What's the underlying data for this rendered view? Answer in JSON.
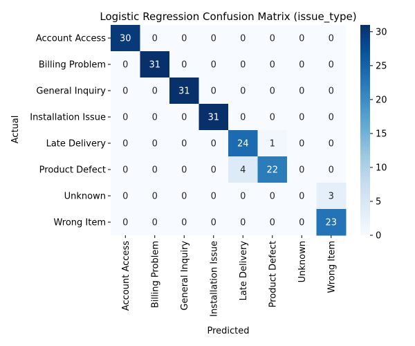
{
  "chart_data": {
    "type": "heatmap",
    "title": "Logistic Regression Confusion Matrix (issue_type)",
    "xlabel": "Predicted",
    "ylabel": "Actual",
    "x_categories": [
      "Account Access",
      "Billing Problem",
      "General Inquiry",
      "Installation Issue",
      "Late Delivery",
      "Product Defect",
      "Unknown",
      "Wrong Item"
    ],
    "y_categories": [
      "Account Access",
      "Billing Problem",
      "General Inquiry",
      "Installation Issue",
      "Late Delivery",
      "Product Defect",
      "Unknown",
      "Wrong Item"
    ],
    "values": [
      [
        30,
        0,
        0,
        0,
        0,
        0,
        0,
        0
      ],
      [
        0,
        31,
        0,
        0,
        0,
        0,
        0,
        0
      ],
      [
        0,
        0,
        31,
        0,
        0,
        0,
        0,
        0
      ],
      [
        0,
        0,
        0,
        31,
        0,
        0,
        0,
        0
      ],
      [
        0,
        0,
        0,
        0,
        24,
        1,
        0,
        0
      ],
      [
        0,
        0,
        0,
        0,
        4,
        22,
        0,
        0
      ],
      [
        0,
        0,
        0,
        0,
        0,
        0,
        0,
        3
      ],
      [
        0,
        0,
        0,
        0,
        0,
        0,
        0,
        23
      ]
    ],
    "colormap": "Blues",
    "colorbar": {
      "min": 0,
      "max": 31,
      "ticks": [
        0,
        5,
        10,
        15,
        20,
        25,
        30
      ]
    }
  }
}
